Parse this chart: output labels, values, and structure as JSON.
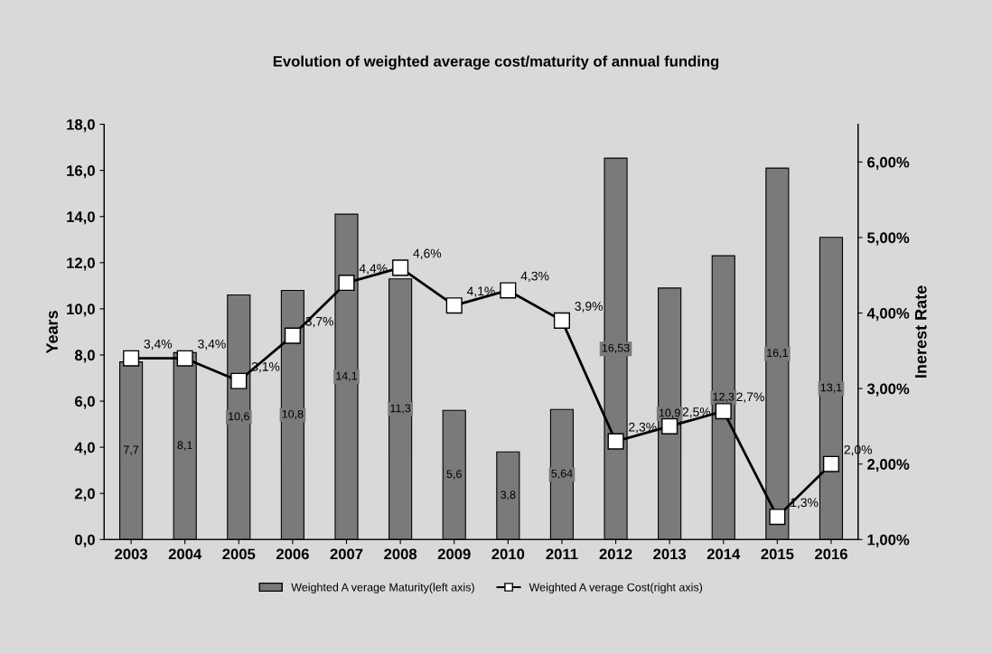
{
  "chart_data": {
    "type": "bar",
    "title": "Evolution of weighted average cost/maturity of annual funding",
    "categories": [
      "2003",
      "2004",
      "2005",
      "2006",
      "2007",
      "2008",
      "2009",
      "2010",
      "2011",
      "2012",
      "2013",
      "2014",
      "2015",
      "2016"
    ],
    "series": [
      {
        "name": "Weighted A verage Maturity(left axis)",
        "color": "#7a7a7a",
        "values": [
          7.7,
          8.1,
          10.6,
          10.8,
          14.1,
          11.3,
          5.6,
          3.8,
          5.64,
          16.53,
          10.9,
          12.3,
          16.1,
          13.1
        ],
        "value_labels": [
          "7,7",
          "8,1",
          "10,6",
          "10,8",
          "14,1",
          "11,3",
          "5,6",
          "3,8",
          "5,64",
          "16,53",
          "10,9",
          "12,3",
          "16,1",
          "13,1"
        ]
      },
      {
        "name": "Weighted A verage Cost(right axis)",
        "type": "line",
        "axis": "y2",
        "color": "#000000",
        "marker": "square",
        "values": [
          3.4,
          3.4,
          3.1,
          3.7,
          4.4,
          4.6,
          4.1,
          4.3,
          3.9,
          2.3,
          2.5,
          2.7,
          1.3,
          2.0
        ],
        "value_labels": [
          "3,4%",
          "3,4%",
          "3,1%",
          "3,7%",
          "4,4%",
          "4,6%",
          "4,1%",
          "4,3%",
          "3,9%",
          "2,3%",
          "2,5%",
          "2,7%",
          "1,3%",
          "2,0%"
        ]
      }
    ],
    "ylabel": "Years",
    "y2label": "Inerest Rate",
    "ylim": [
      0,
      18
    ],
    "yticks": [
      {
        "value": 0,
        "label": "0,0"
      },
      {
        "value": 2,
        "label": "2,0"
      },
      {
        "value": 4,
        "label": "4,0"
      },
      {
        "value": 6,
        "label": "6,0"
      },
      {
        "value": 8,
        "label": "8,0"
      },
      {
        "value": 10,
        "label": "10,0"
      },
      {
        "value": 12,
        "label": "12,0"
      },
      {
        "value": 14,
        "label": "14,0"
      },
      {
        "value": 16,
        "label": "16,0"
      },
      {
        "value": 18,
        "label": "18,0"
      }
    ],
    "y2lim": [
      1,
      6.5
    ],
    "y2ticks": [
      {
        "value": 1,
        "label": "1,00%"
      },
      {
        "value": 2,
        "label": "2,00%"
      },
      {
        "value": 3,
        "label": "3,00%"
      },
      {
        "value": 4,
        "label": "4,00%"
      },
      {
        "value": 5,
        "label": "5,00%"
      },
      {
        "value": 6,
        "label": "6,00%"
      }
    ],
    "legend": "bottom",
    "grid": false
  }
}
